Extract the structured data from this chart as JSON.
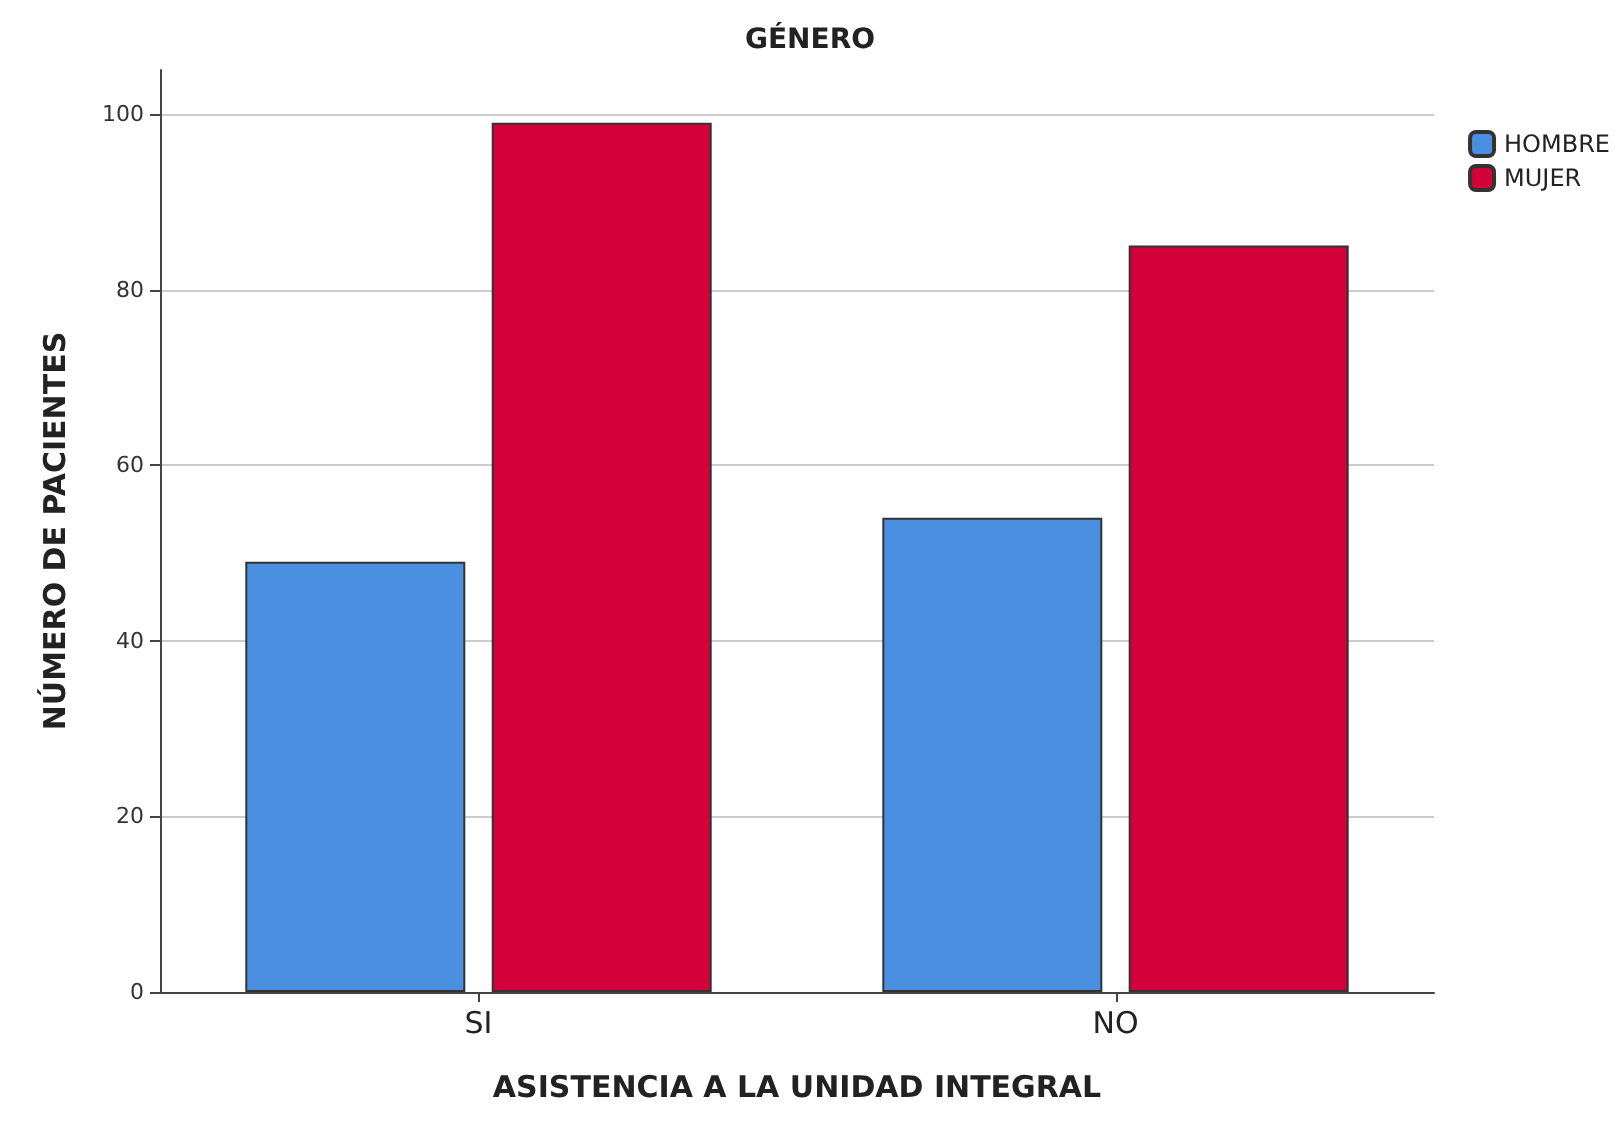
{
  "chart_data": {
    "type": "bar",
    "title": "GÉNERO",
    "xlabel": "ASISTENCIA A LA UNIDAD INTEGRAL",
    "ylabel": "NÚMERO DE PACIENTES",
    "categories": [
      "SI",
      "NO"
    ],
    "series": [
      {
        "name": "HOMBRE",
        "color": "#4a8fe0",
        "values": [
          49,
          54
        ]
      },
      {
        "name": "MUJER",
        "color": "#d4003a",
        "values": [
          99,
          85
        ]
      }
    ],
    "ylim": [
      0,
      105
    ],
    "yticks": [
      0,
      20,
      40,
      60,
      80,
      100
    ],
    "grid": "y",
    "legend": "top right"
  }
}
